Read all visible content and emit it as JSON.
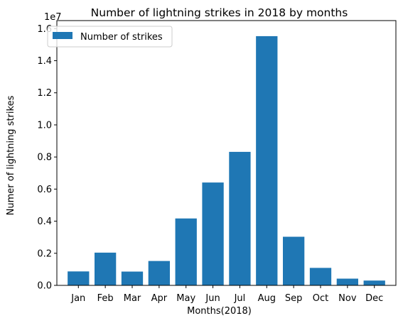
{
  "chart_data": {
    "type": "bar",
    "title": "Number of lightning strikes in 2018 by months",
    "xlabel": "Months(2018)",
    "ylabel": "Numer of lightning strikes",
    "y_offset_label": "1e7",
    "categories": [
      "Jan",
      "Feb",
      "Mar",
      "Apr",
      "May",
      "Jun",
      "Jul",
      "Aug",
      "Sep",
      "Oct",
      "Nov",
      "Dec"
    ],
    "series": [
      {
        "name": "Number of strikes",
        "values": [
          870000,
          2040000,
          860000,
          1520000,
          4170000,
          6410000,
          8320000,
          15530000,
          3030000,
          1090000,
          420000,
          300000
        ]
      }
    ],
    "ylim": [
      0,
      16500000
    ],
    "yticks": [
      0,
      2000000,
      4000000,
      6000000,
      8000000,
      10000000,
      12000000,
      14000000,
      16000000
    ],
    "ytick_labels": [
      "0.0",
      "0.2",
      "0.4",
      "0.6",
      "0.8",
      "1.0",
      "1.2",
      "1.4",
      "1.6"
    ],
    "grid": false,
    "legend_position": "top-left",
    "bar_color": "#1f77b4"
  }
}
